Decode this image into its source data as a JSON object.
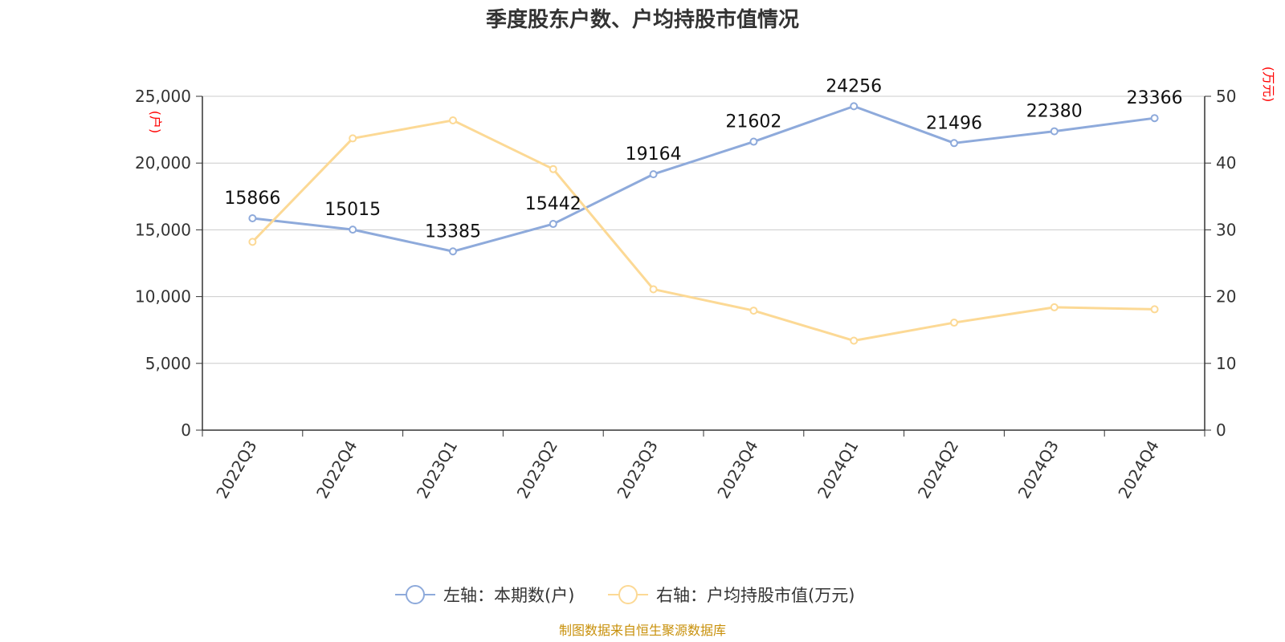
{
  "title": "季度股东户数、户均持股市值情况",
  "left_axis_unit": "(户)",
  "right_axis_unit": "(万元)",
  "source": "制图数据来自恒生聚源数据库",
  "colors": {
    "series1": "#8eaadb",
    "series2": "#fcd995",
    "unit": "#ff0000",
    "source": "#c8900a",
    "grid": "#cccccc",
    "axis": "#333333"
  },
  "chart_data": {
    "type": "line",
    "title": "季度股东户数、户均持股市值情况",
    "categories": [
      "2022Q3",
      "2022Q4",
      "2023Q1",
      "2023Q2",
      "2023Q3",
      "2023Q4",
      "2024Q1",
      "2024Q2",
      "2024Q3",
      "2024Q4"
    ],
    "y_left": {
      "min": 0,
      "max": 25000,
      "ticks": [
        0,
        5000,
        10000,
        15000,
        20000,
        25000
      ],
      "tick_labels": [
        "0",
        "5,000",
        "10,000",
        "15,000",
        "20,000",
        "25,000"
      ],
      "unit": "(户)"
    },
    "y_right": {
      "min": 0,
      "max": 50,
      "ticks": [
        0,
        10,
        20,
        30,
        40,
        50
      ],
      "tick_labels": [
        "0",
        "10",
        "20",
        "30",
        "40",
        "50"
      ],
      "unit": "(万元)"
    },
    "grid": true,
    "legend_position": "bottom-center",
    "series": [
      {
        "name": "左轴：本期数(户)",
        "axis": "left",
        "color": "#8eaadb",
        "values": [
          15866,
          15015,
          13385,
          15442,
          19164,
          21602,
          24256,
          21496,
          22380,
          23366
        ],
        "labels": [
          "15866",
          "15015",
          "13385",
          "15442",
          "19164",
          "21602",
          "24256",
          "21496",
          "22380",
          "23366"
        ]
      },
      {
        "name": "右轴：户均持股市值(万元)",
        "axis": "right",
        "color": "#fcd995",
        "values": [
          28.2,
          43.7,
          46.4,
          39.1,
          21.1,
          17.9,
          13.4,
          16.1,
          18.4,
          18.1
        ]
      }
    ]
  }
}
